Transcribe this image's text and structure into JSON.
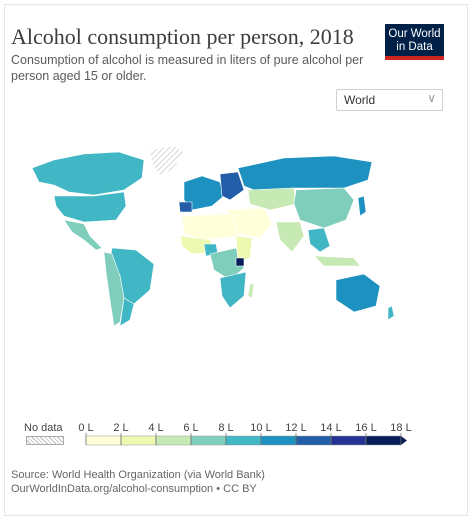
{
  "header": {
    "title": "Alcohol consumption per person, 2018",
    "subtitle": "Consumption of alcohol is measured in liters of pure alcohol per person aged 15 or older."
  },
  "logo": {
    "line1": "Our World",
    "line2": "in Data",
    "bg": "#002147",
    "accent": "#ce261e"
  },
  "region_select": {
    "value": "World",
    "icon": "chevron-down-icon"
  },
  "legend": {
    "nodata_label": "No data",
    "ticks": [
      "0 L",
      "2 L",
      "4 L",
      "6 L",
      "8 L",
      "10 L",
      "12 L",
      "14 L",
      "16 L",
      "18 L"
    ],
    "colors": [
      "#ffffd9",
      "#edf8b1",
      "#c7e9b4",
      "#7fcdbb",
      "#41b6c4",
      "#1d91c0",
      "#225ea8",
      "#253494",
      "#081d58"
    ]
  },
  "footer": {
    "source": "Source: World Health Organization (via World Bank)",
    "url_line": "OurWorldInData.org/alcohol-consumption • CC BY"
  }
}
